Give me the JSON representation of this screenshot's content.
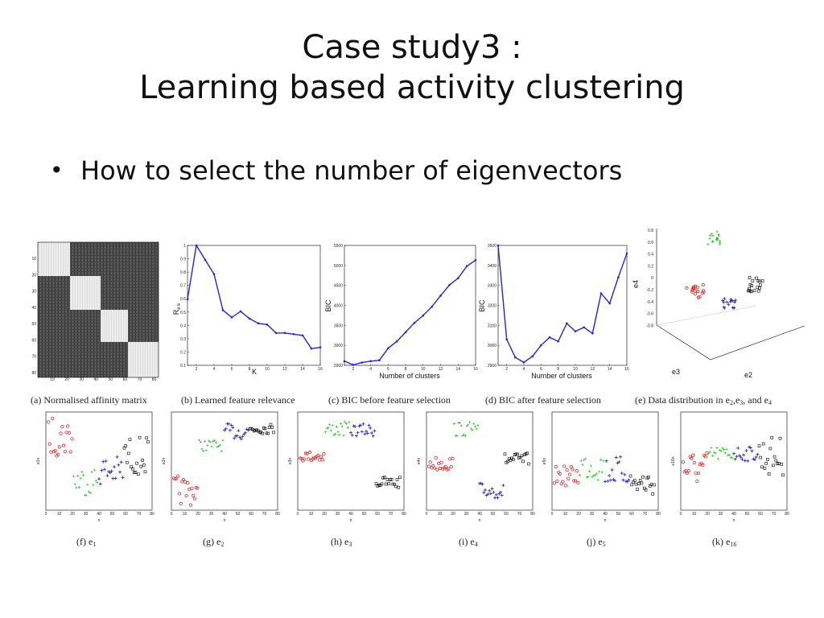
{
  "slide": {
    "title_line1": "Case study3 :",
    "title_line2": "Learning based activity clustering",
    "bullet": "How to select the number of eigenvectors",
    "colors": {
      "line_blue": "#2424d8",
      "red": "#e02020",
      "green": "#20c020",
      "blue": "#1a1ab0",
      "black": "#000000"
    }
  },
  "figures": {
    "captions": {
      "a": "(a) Normalised affinity matrix",
      "b": "(b) Learned feature relevance",
      "c": "(c) BIC before feature selection",
      "d": "(d) BIC after feature selection",
      "e_prefix": "(e) Data distribution in ",
      "f": "(f) e",
      "g": "(g) e",
      "h": "(h) e",
      "i": "(i) e",
      "j": "(j) e",
      "k": "(k) e"
    },
    "caption_subscripts": {
      "f": "1",
      "g": "2",
      "h": "3",
      "i": "4",
      "j": "5",
      "k": "16"
    },
    "e_tail": {
      "e2": "e",
      "e2_sub": "2",
      "sep1": ",",
      "e3": "e",
      "e3_sub": "3",
      "sep2": ", and ",
      "e4": "e",
      "e4_sub": "4"
    },
    "affinity_ticks": [
      "10",
      "20",
      "30",
      "40",
      "50",
      "60",
      "70",
      "80"
    ],
    "b_axes": {
      "xlabel": "K",
      "ylabel": "R",
      "ylabel_sub": "e k",
      "xticks": [
        "2",
        "4",
        "6",
        "8",
        "10",
        "12",
        "14",
        "16"
      ],
      "yticks": [
        "0.1",
        "0.2",
        "0.3",
        "0.4",
        "0.5",
        "0.6",
        "0.7",
        "0.8",
        "0.9",
        "1"
      ]
    },
    "c_axes": {
      "xlabel": "Number of clusters",
      "ylabel": "BIC",
      "xticks": [
        "2",
        "4",
        "6",
        "8",
        "10",
        "12",
        "14",
        "16"
      ],
      "yticks": [
        "2900",
        "3000",
        "3500",
        "4000",
        "4500",
        "5000",
        "5500"
      ]
    },
    "d_axes": {
      "xlabel": "Number of clusters",
      "ylabel": "BIC",
      "xticks": [
        "2",
        "4",
        "6",
        "8",
        "10",
        "12",
        "14",
        "16"
      ],
      "yticks": [
        "2900",
        "3000",
        "3100",
        "3200",
        "3300",
        "3400",
        "3500"
      ]
    },
    "e_axes": {
      "xlabel": "e3",
      "ylabel": "e4",
      "zlabel": "e2"
    },
    "small_xlabel": "n",
    "small_ylabels": [
      "e1n",
      "e2n",
      "e3n",
      "e4n",
      "e5n",
      "e16n"
    ],
    "small_xticks": [
      "0",
      "10",
      "20",
      "30",
      "40",
      "50",
      "60",
      "70",
      "80"
    ]
  },
  "chart_data": [
    {
      "type": "line",
      "title": "",
      "xlabel": "K",
      "ylabel": "R_ek",
      "x": [
        1,
        2,
        3,
        4,
        5,
        6,
        7,
        8,
        9,
        10,
        11,
        12,
        13,
        14,
        15,
        16
      ],
      "values": [
        0.55,
        1.0,
        0.88,
        0.76,
        0.46,
        0.4,
        0.45,
        0.39,
        0.35,
        0.34,
        0.27,
        0.27,
        0.26,
        0.25,
        0.14,
        0.15
      ],
      "xlim": [
        1,
        16
      ],
      "ylim": [
        0,
        1
      ]
    },
    {
      "type": "line",
      "title": "",
      "xlabel": "Number of clusters",
      "ylabel": "BIC",
      "x": [
        1,
        2,
        3,
        4,
        5,
        6,
        7,
        8,
        9,
        10,
        11,
        12,
        13,
        14,
        15,
        16
      ],
      "values": [
        2990,
        2910,
        2960,
        2990,
        3010,
        3270,
        3420,
        3620,
        3820,
        3980,
        4170,
        4410,
        4640,
        4790,
        5050,
        5180
      ],
      "xlim": [
        1,
        16
      ],
      "ylim": [
        2900,
        5500
      ]
    },
    {
      "type": "line",
      "title": "",
      "xlabel": "Number of clusters",
      "ylabel": "BIC",
      "x": [
        1,
        2,
        3,
        4,
        5,
        6,
        7,
        8,
        9,
        10,
        11,
        12,
        13,
        14,
        15,
        16
      ],
      "values": [
        3500,
        3030,
        2940,
        2915,
        2945,
        3000,
        3040,
        3020,
        3110,
        3070,
        3090,
        3060,
        3260,
        3210,
        3340,
        3460
      ],
      "xlim": [
        1,
        16
      ],
      "ylim": [
        2900,
        3500
      ]
    }
  ]
}
